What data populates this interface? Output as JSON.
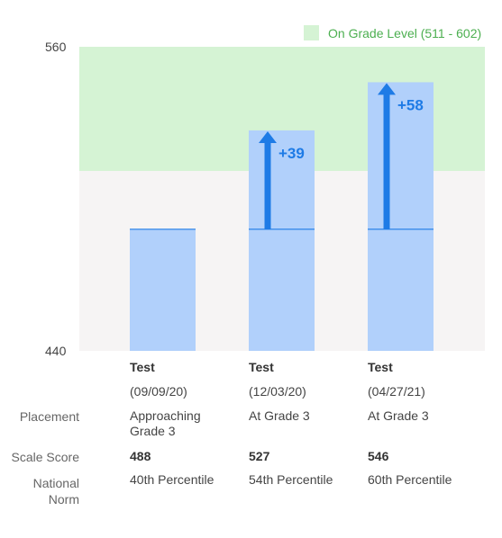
{
  "legend": {
    "label": "On Grade Level (511 - 602)",
    "color": "#d5f3d4"
  },
  "colors": {
    "bar": "#b1d0fb",
    "bar_line": "#1e7be6",
    "arrow": "#1e7be6",
    "plot_bg": "#f6f4f4",
    "band": "#d5f3d4"
  },
  "chart_data": {
    "type": "bar",
    "title": "",
    "xlabel": "",
    "ylabel": "",
    "ylim": [
      440,
      560
    ],
    "yticks": [
      440,
      560
    ],
    "band": {
      "label": "On Grade Level (511 - 602)",
      "from": 511,
      "to": 602
    },
    "categories": [
      "Test (09/09/20)",
      "Test (12/03/20)",
      "Test (04/27/21)"
    ],
    "values": [
      488,
      527,
      546
    ],
    "baseline_score": 488,
    "deltas": [
      null,
      "+39",
      "+58"
    ]
  },
  "table": {
    "row_labels": {
      "placement": "Placement",
      "scale_score": "Scale Score",
      "national_norm": "National Norm"
    },
    "columns": [
      {
        "test": "Test",
        "date": "(09/09/20)",
        "placement": "Approaching Grade 3",
        "score": "488",
        "norm": "40th Percentile"
      },
      {
        "test": "Test",
        "date": "(12/03/20)",
        "placement": "At Grade 3",
        "score": "527",
        "norm": "54th Percentile"
      },
      {
        "test": "Test",
        "date": "(04/27/21)",
        "placement": "At Grade 3",
        "score": "546",
        "norm": "60th Percentile"
      }
    ]
  }
}
